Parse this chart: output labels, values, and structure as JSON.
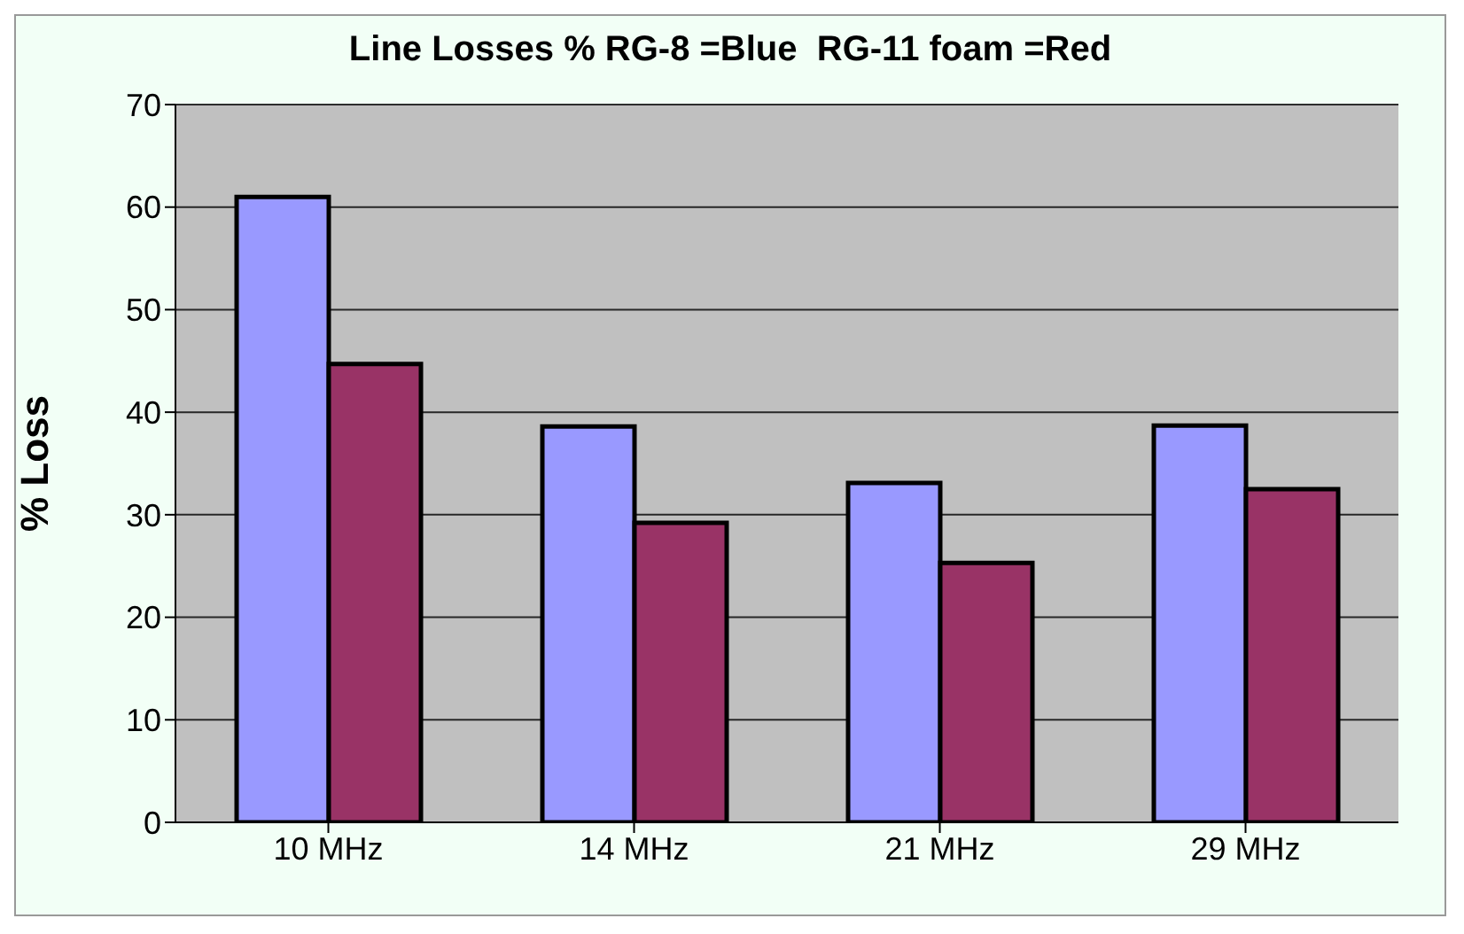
{
  "chart_data": {
    "type": "bar",
    "title": "Line Losses % RG-8 =Blue  RG-11 foam =Red",
    "ylabel": "% Loss",
    "categories": [
      "10 MHz",
      "14 MHz",
      "21 MHz",
      "29 MHz"
    ],
    "series": [
      {
        "color": "#9999ff",
        "values": [
          61,
          38.6,
          33.1,
          38.7
        ]
      },
      {
        "color": "#993366",
        "values": [
          44.7,
          29.2,
          25.3,
          32.5
        ]
      }
    ],
    "ylim": [
      0,
      70
    ],
    "yticks": [
      0,
      10,
      20,
      30,
      40,
      50,
      60,
      70
    ],
    "grid": "y"
  }
}
